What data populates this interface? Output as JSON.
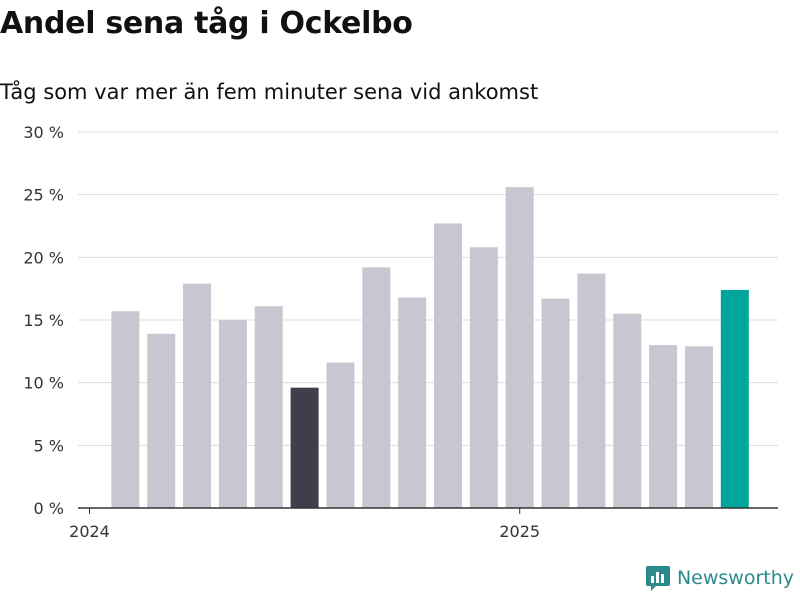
{
  "header": {
    "title": "Andel sena tåg i Ockelbo",
    "subtitle": "Tåg som var mer än fem minuter sena vid ankomst"
  },
  "brand": {
    "name": "Newsworthy",
    "icon": "newsworthy-logo-icon",
    "color": "#2a8a8c"
  },
  "chart_data": {
    "type": "bar",
    "y_ticks": [
      0,
      5,
      10,
      15,
      20,
      25,
      30
    ],
    "y_tick_labels": [
      "0 %",
      "5 %",
      "10 %",
      "15 %",
      "20 %",
      "25 %",
      "30 %"
    ],
    "ylim": [
      0,
      30
    ],
    "x_tick_labels": [
      {
        "label": "2024",
        "month_index": 0
      },
      {
        "label": "2025",
        "month_index": 12
      }
    ],
    "grid": true,
    "legend": "none",
    "values": [
      15.7,
      13.9,
      17.9,
      15.0,
      16.1,
      9.6,
      11.6,
      19.2,
      16.8,
      22.7,
      20.8,
      25.6,
      16.7,
      18.7,
      15.5,
      13.0,
      12.9,
      17.4
    ],
    "first_month_index": 1,
    "highlight": [
      {
        "index": 5,
        "color": "#3f3e4a"
      },
      {
        "index": 17,
        "color": "#00a69c"
      }
    ],
    "default_color": "#c8c6d0"
  }
}
